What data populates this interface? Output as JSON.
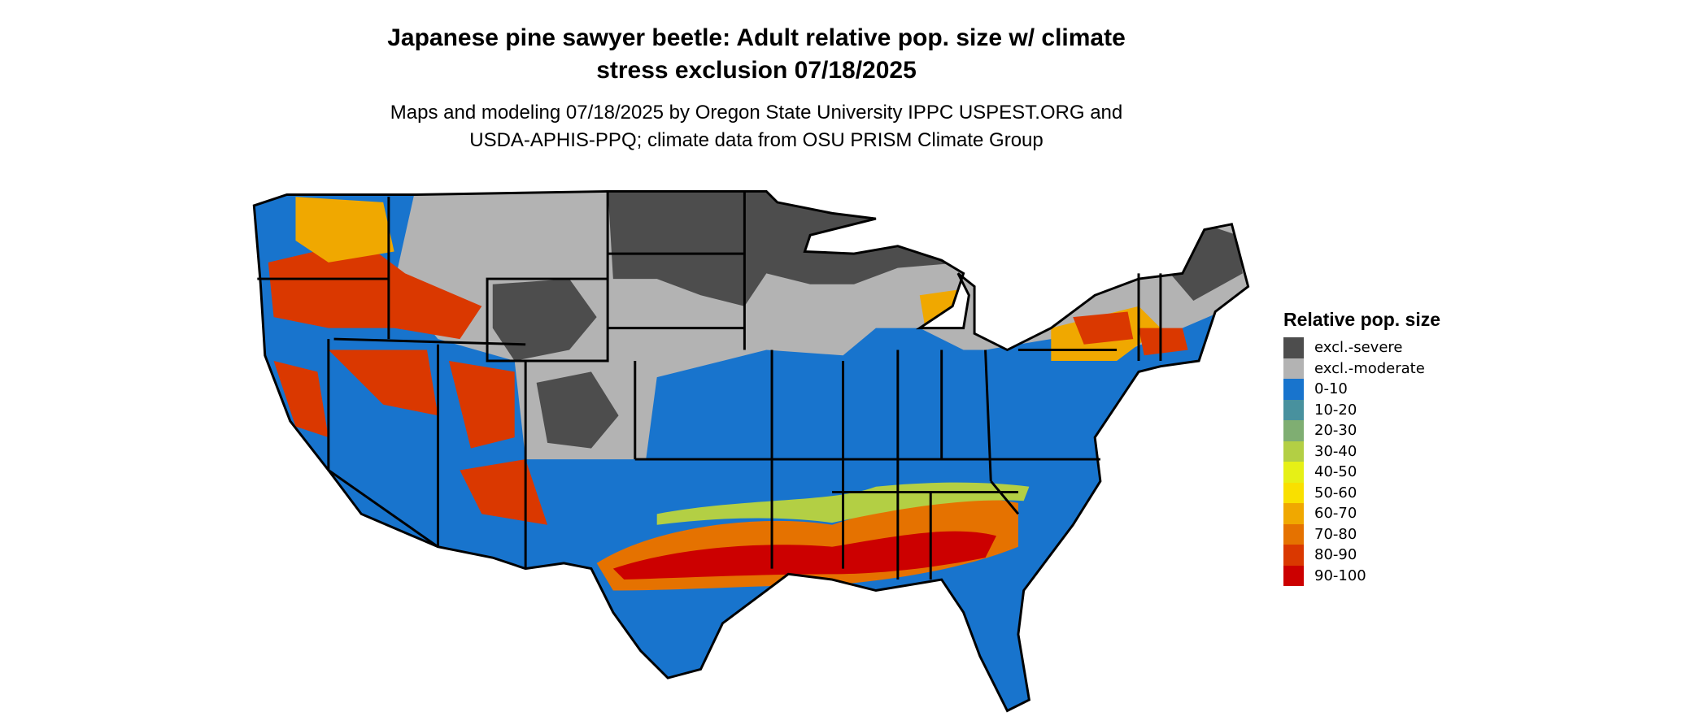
{
  "title": "Japanese pine sawyer beetle: Adult relative pop. size w/ climate stress exclusion 07/18/2025",
  "title_lines": [
    "Japanese pine sawyer beetle: Adult relative pop. size w/ climate",
    "stress exclusion 07/18/2025"
  ],
  "subtitle_lines": [
    "Maps and modeling 07/18/2025 by Oregon State University IPPC USPEST.ORG and",
    "USDA-APHIS-PPQ; climate data from OSU PRISM Climate Group"
  ],
  "map": {
    "region": "conterminous United States",
    "boundaries": "state borders"
  },
  "legend": {
    "title": "Relative pop. size",
    "items": [
      {
        "label": "excl.-severe",
        "color": "#4d4d4d"
      },
      {
        "label": "excl.-moderate",
        "color": "#b3b3b3"
      },
      {
        "label": "0-10",
        "color": "#1874cd"
      },
      {
        "label": "10-20",
        "color": "#48919e"
      },
      {
        "label": "20-30",
        "color": "#7fae72"
      },
      {
        "label": "30-40",
        "color": "#b3cf44"
      },
      {
        "label": "40-50",
        "color": "#e6f016"
      },
      {
        "label": "50-60",
        "color": "#f9e000"
      },
      {
        "label": "60-70",
        "color": "#f0a800"
      },
      {
        "label": "70-80",
        "color": "#e57200"
      },
      {
        "label": "80-90",
        "color": "#da3800"
      },
      {
        "label": "90-100",
        "color": "#cc0000"
      }
    ]
  }
}
